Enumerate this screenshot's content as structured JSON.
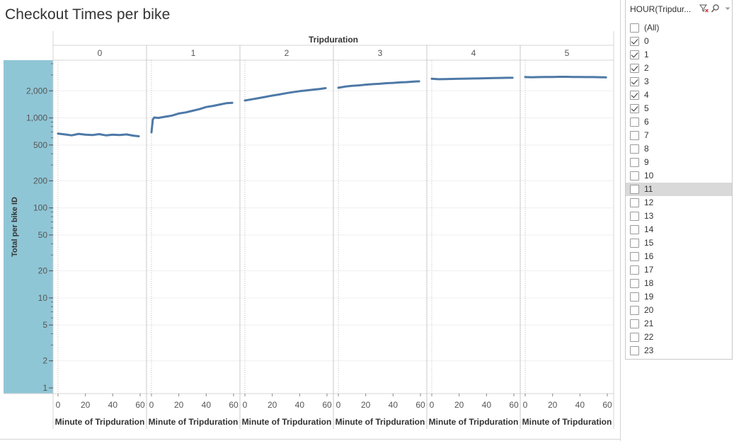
{
  "worksheet": {
    "title": "Checkout Times per bike",
    "column_header": "Tripduration",
    "x_axis_label": "Minute of Tripduration",
    "y_axis_label": "Total per bike ID"
  },
  "filter": {
    "title": "HOUR(Tripdur...",
    "items": [
      {
        "label": "(All)",
        "checked": false
      },
      {
        "label": "0",
        "checked": true
      },
      {
        "label": "1",
        "checked": true
      },
      {
        "label": "2",
        "checked": true
      },
      {
        "label": "3",
        "checked": true
      },
      {
        "label": "4",
        "checked": true
      },
      {
        "label": "5",
        "checked": true
      },
      {
        "label": "6",
        "checked": false
      },
      {
        "label": "7",
        "checked": false
      },
      {
        "label": "8",
        "checked": false
      },
      {
        "label": "9",
        "checked": false
      },
      {
        "label": "10",
        "checked": false
      },
      {
        "label": "11",
        "checked": false,
        "hover": true
      },
      {
        "label": "12",
        "checked": false
      },
      {
        "label": "13",
        "checked": false
      },
      {
        "label": "14",
        "checked": false
      },
      {
        "label": "15",
        "checked": false
      },
      {
        "label": "16",
        "checked": false
      },
      {
        "label": "17",
        "checked": false
      },
      {
        "label": "18",
        "checked": false
      },
      {
        "label": "19",
        "checked": false
      },
      {
        "label": "20",
        "checked": false
      },
      {
        "label": "21",
        "checked": false
      },
      {
        "label": "22",
        "checked": false
      },
      {
        "label": "23",
        "checked": false
      }
    ]
  },
  "chart_data": {
    "type": "line",
    "title": "Checkout Times per bike",
    "column_header": "Tripduration",
    "xlabel": "Minute of Tripduration",
    "ylabel": "Total per bike ID",
    "y_scale": "log",
    "ylim": [
      1,
      4000
    ],
    "xlim": [
      -2,
      62
    ],
    "x_ticks": [
      0,
      20,
      40,
      60
    ],
    "y_ticks": [
      1,
      2,
      5,
      10,
      20,
      50,
      100,
      200,
      500,
      1000,
      2000
    ],
    "y_tick_labels": [
      "1",
      "2",
      "5",
      "10",
      "20",
      "50",
      "100",
      "200",
      "500",
      "1,000",
      "2,000"
    ],
    "grid": true,
    "line_color": "#4e79a7",
    "axis_band_color": "#8fc6d6",
    "panels": [
      {
        "label": "0",
        "x": [
          0,
          5,
          10,
          15,
          20,
          25,
          30,
          35,
          40,
          45,
          50,
          55,
          59
        ],
        "y": [
          670,
          655,
          640,
          665,
          650,
          645,
          660,
          640,
          650,
          645,
          655,
          635,
          625
        ]
      },
      {
        "label": "1",
        "x": [
          0,
          1,
          2,
          5,
          10,
          15,
          20,
          25,
          30,
          35,
          40,
          45,
          50,
          55,
          59
        ],
        "y": [
          690,
          960,
          1010,
          1000,
          1030,
          1060,
          1120,
          1150,
          1200,
          1250,
          1320,
          1360,
          1410,
          1460,
          1470
        ]
      },
      {
        "label": "2",
        "x": [
          0,
          5,
          10,
          15,
          20,
          25,
          30,
          35,
          40,
          45,
          50,
          55,
          59
        ],
        "y": [
          1560,
          1610,
          1660,
          1710,
          1770,
          1820,
          1880,
          1930,
          1980,
          2020,
          2060,
          2100,
          2140
        ]
      },
      {
        "label": "3",
        "x": [
          0,
          5,
          10,
          15,
          20,
          25,
          30,
          35,
          40,
          45,
          50,
          55,
          59
        ],
        "y": [
          2160,
          2230,
          2270,
          2300,
          2340,
          2370,
          2390,
          2430,
          2450,
          2480,
          2500,
          2530,
          2550
        ]
      },
      {
        "label": "4",
        "x": [
          0,
          5,
          10,
          15,
          20,
          25,
          30,
          35,
          40,
          45,
          50,
          55,
          59
        ],
        "y": [
          2720,
          2690,
          2700,
          2710,
          2720,
          2730,
          2740,
          2750,
          2760,
          2770,
          2780,
          2790,
          2790
        ]
      },
      {
        "label": "5",
        "x": [
          0,
          5,
          10,
          15,
          20,
          25,
          30,
          35,
          40,
          45,
          50,
          55,
          59
        ],
        "y": [
          2840,
          2830,
          2840,
          2850,
          2850,
          2860,
          2860,
          2850,
          2850,
          2840,
          2840,
          2830,
          2820
        ]
      }
    ]
  }
}
